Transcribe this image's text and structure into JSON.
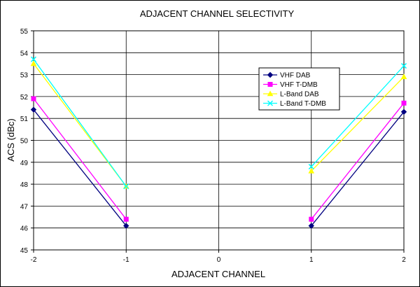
{
  "chart_data": {
    "type": "line",
    "title": "ADJACENT CHANNEL SELECTIVITY",
    "xlabel": "ADJACENT CHANNEL",
    "ylabel": "ACS (dBc)",
    "xlim": [
      -2,
      2
    ],
    "ylim": [
      45,
      55
    ],
    "x_ticks": [
      -2,
      -1,
      0,
      1,
      2
    ],
    "y_ticks": [
      45,
      46,
      47,
      48,
      49,
      50,
      51,
      52,
      53,
      54,
      55
    ],
    "grid": true,
    "legend_position": "right",
    "series": [
      {
        "name": "VHF DAB",
        "color": "#000080",
        "marker": "diamond",
        "segments": [
          [
            [
              -2,
              51.4
            ],
            [
              -1,
              46.1
            ]
          ],
          [
            [
              1,
              46.1
            ],
            [
              2,
              51.3
            ]
          ]
        ]
      },
      {
        "name": "VHF T-DMB",
        "color": "#FF00FF",
        "marker": "square",
        "segments": [
          [
            [
              -2,
              51.9
            ],
            [
              -1,
              46.4
            ]
          ],
          [
            [
              1,
              46.4
            ],
            [
              2,
              51.7
            ]
          ]
        ]
      },
      {
        "name": "L-Band DAB",
        "color": "#FFFF00",
        "marker": "triangle",
        "segments": [
          [
            [
              -2,
              53.5
            ],
            [
              -1,
              47.9
            ]
          ],
          [
            [
              1,
              48.6
            ],
            [
              2,
              52.9
            ]
          ]
        ]
      },
      {
        "name": "L-Band T-DMB",
        "color": "#00FFFF",
        "marker": "x",
        "segments": [
          [
            [
              -2,
              53.7
            ],
            [
              -1,
              47.9
            ]
          ],
          [
            [
              1,
              48.8
            ],
            [
              2,
              53.4
            ]
          ]
        ]
      }
    ]
  }
}
